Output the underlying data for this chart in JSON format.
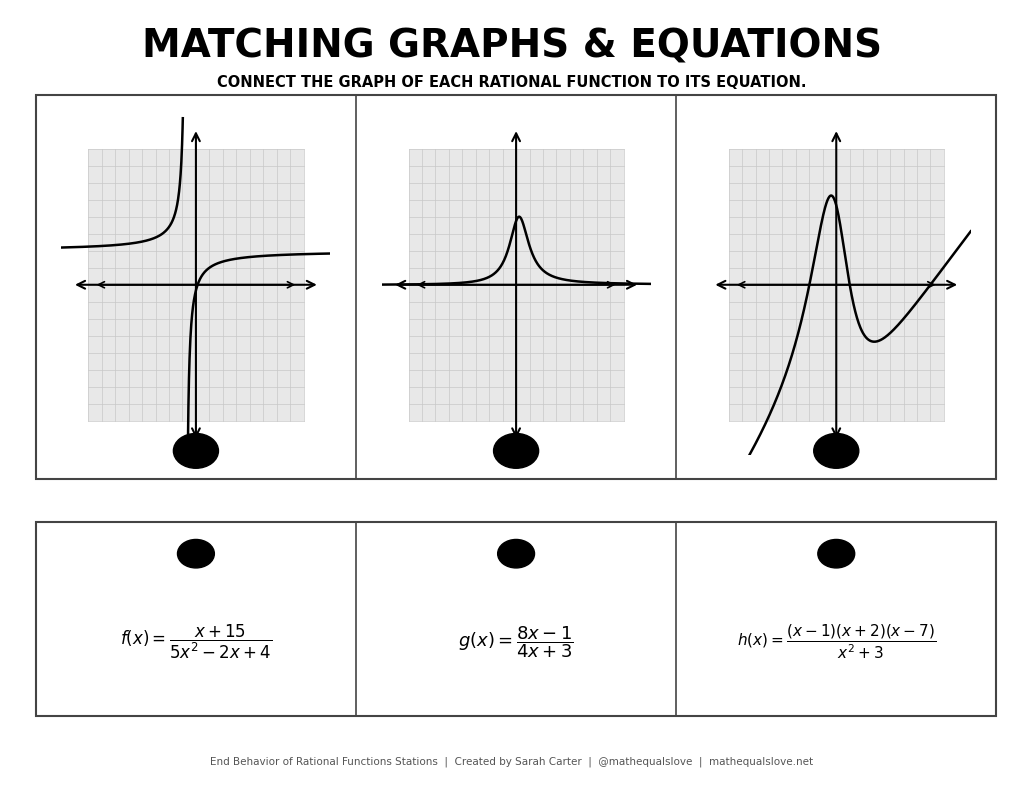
{
  "title": "MATCHING GRAPHS & EQUATIONS",
  "subtitle": "CONNECT THE GRAPH OF EACH RATIONAL FUNCTION TO ITS EQUATION.",
  "bg_color": "#ffffff",
  "grid_bg_color": "#e8e8e8",
  "grid_line_color": "#c8c8c8",
  "footer": "End Behavior of Rational Functions Stations  |  Created by Sarah Carter  |  @mathequalslove  |  mathequalslove.net",
  "graph_xlim": [
    -10,
    10
  ],
  "graph_ylim": [
    -10,
    10
  ],
  "grid_xlim": [
    -8,
    8
  ],
  "grid_ylim": [
    -8,
    8
  ]
}
